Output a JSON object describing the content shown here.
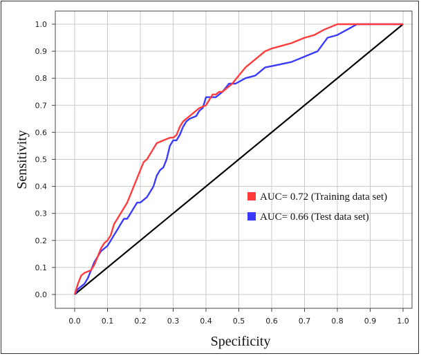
{
  "chart_data": {
    "type": "line",
    "title": "",
    "xlabel": "Specificity",
    "ylabel": "Sensitivity",
    "xlim": [
      0,
      1
    ],
    "ylim": [
      0,
      1
    ],
    "xticks": [
      "0.0",
      "0.1",
      "0.2",
      "0.3",
      "0.4",
      "0.5",
      "0.6",
      "0.7",
      "0.8",
      "0.9",
      "1.0"
    ],
    "yticks": [
      "0.0",
      "0.1",
      "0.2",
      "0.3",
      "0.4",
      "0.5",
      "0.6",
      "0.7",
      "0.8",
      "0.9",
      "1.0"
    ],
    "grid": true,
    "legend_position": "right",
    "series": [
      {
        "name": "AUC= 0.72 (Training data set)",
        "color": "#ff3b3b",
        "x": [
          0.0,
          0.01,
          0.02,
          0.03,
          0.05,
          0.06,
          0.07,
          0.08,
          0.09,
          0.1,
          0.11,
          0.12,
          0.13,
          0.14,
          0.15,
          0.16,
          0.17,
          0.18,
          0.19,
          0.2,
          0.21,
          0.22,
          0.23,
          0.24,
          0.25,
          0.27,
          0.29,
          0.3,
          0.31,
          0.32,
          0.33,
          0.34,
          0.35,
          0.36,
          0.38,
          0.4,
          0.41,
          0.42,
          0.43,
          0.44,
          0.45,
          0.46,
          0.47,
          0.48,
          0.5,
          0.52,
          0.55,
          0.58,
          0.6,
          0.63,
          0.66,
          0.7,
          0.73,
          0.76,
          0.8,
          0.85,
          0.9,
          1.0
        ],
        "y": [
          0.0,
          0.04,
          0.07,
          0.08,
          0.09,
          0.11,
          0.14,
          0.17,
          0.19,
          0.2,
          0.22,
          0.26,
          0.28,
          0.3,
          0.32,
          0.34,
          0.37,
          0.4,
          0.43,
          0.46,
          0.49,
          0.5,
          0.52,
          0.54,
          0.56,
          0.57,
          0.58,
          0.58,
          0.59,
          0.62,
          0.64,
          0.65,
          0.66,
          0.67,
          0.69,
          0.7,
          0.72,
          0.74,
          0.74,
          0.75,
          0.75,
          0.76,
          0.77,
          0.78,
          0.81,
          0.84,
          0.87,
          0.9,
          0.91,
          0.92,
          0.93,
          0.95,
          0.96,
          0.98,
          1.0,
          1.0,
          1.0,
          1.0
        ]
      },
      {
        "name": "AUC= 0.66 (Test data set)",
        "color": "#3a3aff",
        "x": [
          0.0,
          0.01,
          0.02,
          0.03,
          0.04,
          0.05,
          0.06,
          0.07,
          0.08,
          0.09,
          0.1,
          0.11,
          0.12,
          0.13,
          0.14,
          0.15,
          0.16,
          0.17,
          0.18,
          0.19,
          0.2,
          0.21,
          0.22,
          0.23,
          0.24,
          0.25,
          0.26,
          0.27,
          0.28,
          0.29,
          0.3,
          0.31,
          0.32,
          0.33,
          0.34,
          0.35,
          0.37,
          0.38,
          0.39,
          0.4,
          0.41,
          0.42,
          0.43,
          0.44,
          0.45,
          0.47,
          0.49,
          0.52,
          0.55,
          0.58,
          0.62,
          0.66,
          0.7,
          0.74,
          0.77,
          0.8,
          0.83,
          0.86,
          0.88,
          1.0
        ],
        "y": [
          0.0,
          0.02,
          0.03,
          0.04,
          0.06,
          0.09,
          0.12,
          0.14,
          0.16,
          0.17,
          0.18,
          0.2,
          0.22,
          0.24,
          0.26,
          0.28,
          0.28,
          0.3,
          0.32,
          0.34,
          0.34,
          0.35,
          0.36,
          0.38,
          0.4,
          0.44,
          0.46,
          0.47,
          0.5,
          0.55,
          0.57,
          0.57,
          0.59,
          0.62,
          0.64,
          0.65,
          0.66,
          0.68,
          0.69,
          0.73,
          0.73,
          0.73,
          0.73,
          0.74,
          0.75,
          0.78,
          0.78,
          0.8,
          0.81,
          0.84,
          0.85,
          0.86,
          0.88,
          0.9,
          0.95,
          0.96,
          0.98,
          1.0,
          1.0,
          1.0
        ]
      },
      {
        "name": "",
        "color": "#000000",
        "x": [
          0.0,
          1.0
        ],
        "y": [
          0.0,
          1.0
        ]
      }
    ]
  }
}
